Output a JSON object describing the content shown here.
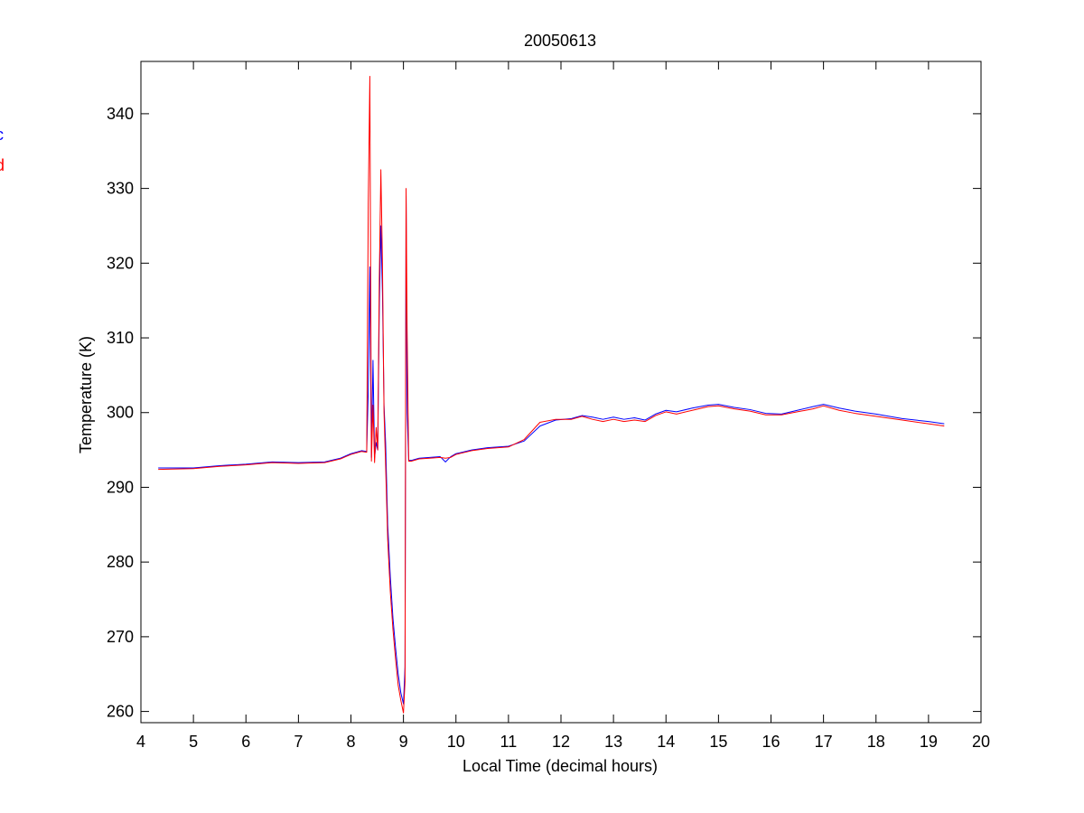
{
  "chart_data": {
    "type": "line",
    "title": "20050613",
    "xlabel": "Local Time (decimal hours)",
    "ylabel": "Temperature (K)",
    "xlim": [
      4,
      20
    ],
    "ylim": [
      258.5,
      347
    ],
    "x_ticks": [
      4,
      5,
      6,
      7,
      8,
      9,
      10,
      11,
      12,
      13,
      14,
      15,
      16,
      17,
      18,
      19,
      20
    ],
    "y_ticks": [
      260,
      270,
      280,
      290,
      300,
      310,
      320,
      330,
      340
    ],
    "grid": false,
    "legend": {
      "placement": "left, partially cut off",
      "entries": [
        {
          "text": "c",
          "color": "#0000ff"
        },
        {
          "text": "d",
          "color": "#ff0000"
        }
      ]
    },
    "series": [
      {
        "color": "#0000ff",
        "x": [
          4.33,
          5.0,
          5.5,
          6.0,
          6.5,
          7.0,
          7.5,
          7.8,
          8.0,
          8.2,
          8.3,
          8.33,
          8.36,
          8.39,
          8.42,
          8.45,
          8.48,
          8.51,
          8.54,
          8.57,
          8.6,
          8.63,
          8.66,
          8.7,
          8.75,
          8.8,
          8.85,
          8.9,
          8.95,
          9.0,
          9.03,
          9.05,
          9.07,
          9.1,
          9.15,
          9.3,
          9.5,
          9.7,
          9.8,
          9.9,
          10.0,
          10.3,
          10.6,
          11.0,
          11.3,
          11.6,
          11.9,
          12.2,
          12.4,
          12.6,
          12.8,
          13.0,
          13.2,
          13.4,
          13.6,
          13.8,
          14.0,
          14.2,
          14.5,
          14.8,
          15.0,
          15.3,
          15.6,
          15.9,
          16.2,
          16.5,
          16.8,
          17.0,
          17.3,
          17.6,
          18.0,
          18.5,
          19.0,
          19.3
        ],
        "y": [
          292.6,
          292.6,
          292.9,
          293.1,
          293.4,
          293.3,
          293.4,
          293.9,
          294.5,
          294.9,
          294.8,
          303.0,
          319.5,
          294.0,
          307.0,
          294.0,
          296.0,
          295.0,
          314.0,
          325.0,
          316.0,
          301.0,
          296.0,
          285.0,
          278.0,
          272.5,
          268.5,
          265.0,
          262.5,
          261.0,
          266.0,
          329.0,
          300.0,
          293.6,
          293.6,
          293.9,
          294.0,
          294.1,
          293.4,
          294.1,
          294.5,
          295.0,
          295.3,
          295.5,
          296.2,
          298.2,
          299.0,
          299.2,
          299.6,
          299.4,
          299.1,
          299.4,
          299.1,
          299.3,
          299.0,
          299.8,
          300.3,
          300.1,
          300.6,
          301.0,
          301.1,
          300.7,
          300.4,
          299.9,
          299.8,
          300.3,
          300.8,
          301.1,
          300.6,
          300.2,
          299.8,
          299.2,
          298.8,
          298.5
        ]
      },
      {
        "color": "#ff0000",
        "x": [
          4.33,
          5.0,
          5.5,
          6.0,
          6.5,
          7.0,
          7.5,
          7.8,
          8.0,
          8.2,
          8.3,
          8.33,
          8.36,
          8.39,
          8.42,
          8.45,
          8.48,
          8.51,
          8.54,
          8.57,
          8.6,
          8.63,
          8.66,
          8.7,
          8.75,
          8.8,
          8.85,
          8.9,
          8.95,
          9.0,
          9.03,
          9.05,
          9.07,
          9.1,
          9.15,
          9.3,
          9.5,
          9.7,
          9.8,
          9.9,
          10.0,
          10.3,
          10.6,
          11.0,
          11.3,
          11.6,
          11.9,
          12.2,
          12.4,
          12.6,
          12.8,
          13.0,
          13.2,
          13.4,
          13.6,
          13.8,
          14.0,
          14.2,
          14.5,
          14.8,
          15.0,
          15.3,
          15.6,
          15.9,
          16.2,
          16.5,
          16.8,
          17.0,
          17.3,
          17.6,
          18.0,
          18.5,
          19.0,
          19.3
        ],
        "y": [
          292.4,
          292.5,
          292.8,
          293.0,
          293.3,
          293.2,
          293.3,
          293.8,
          294.4,
          294.8,
          294.7,
          328.0,
          345.0,
          293.5,
          301.0,
          293.3,
          298.0,
          295.0,
          318.0,
          332.5,
          320.0,
          300.0,
          293.0,
          283.0,
          276.0,
          271.0,
          267.0,
          263.5,
          261.5,
          259.8,
          264.0,
          330.0,
          311.0,
          293.5,
          293.5,
          293.8,
          293.9,
          294.0,
          293.9,
          294.0,
          294.4,
          294.9,
          295.2,
          295.4,
          296.4,
          298.7,
          299.1,
          299.1,
          299.5,
          299.1,
          298.8,
          299.1,
          298.8,
          299.0,
          298.8,
          299.6,
          300.1,
          299.8,
          300.3,
          300.8,
          300.9,
          300.5,
          300.2,
          299.7,
          299.7,
          300.1,
          300.5,
          300.9,
          300.3,
          299.9,
          299.5,
          299.0,
          298.5,
          298.2
        ]
      }
    ]
  }
}
